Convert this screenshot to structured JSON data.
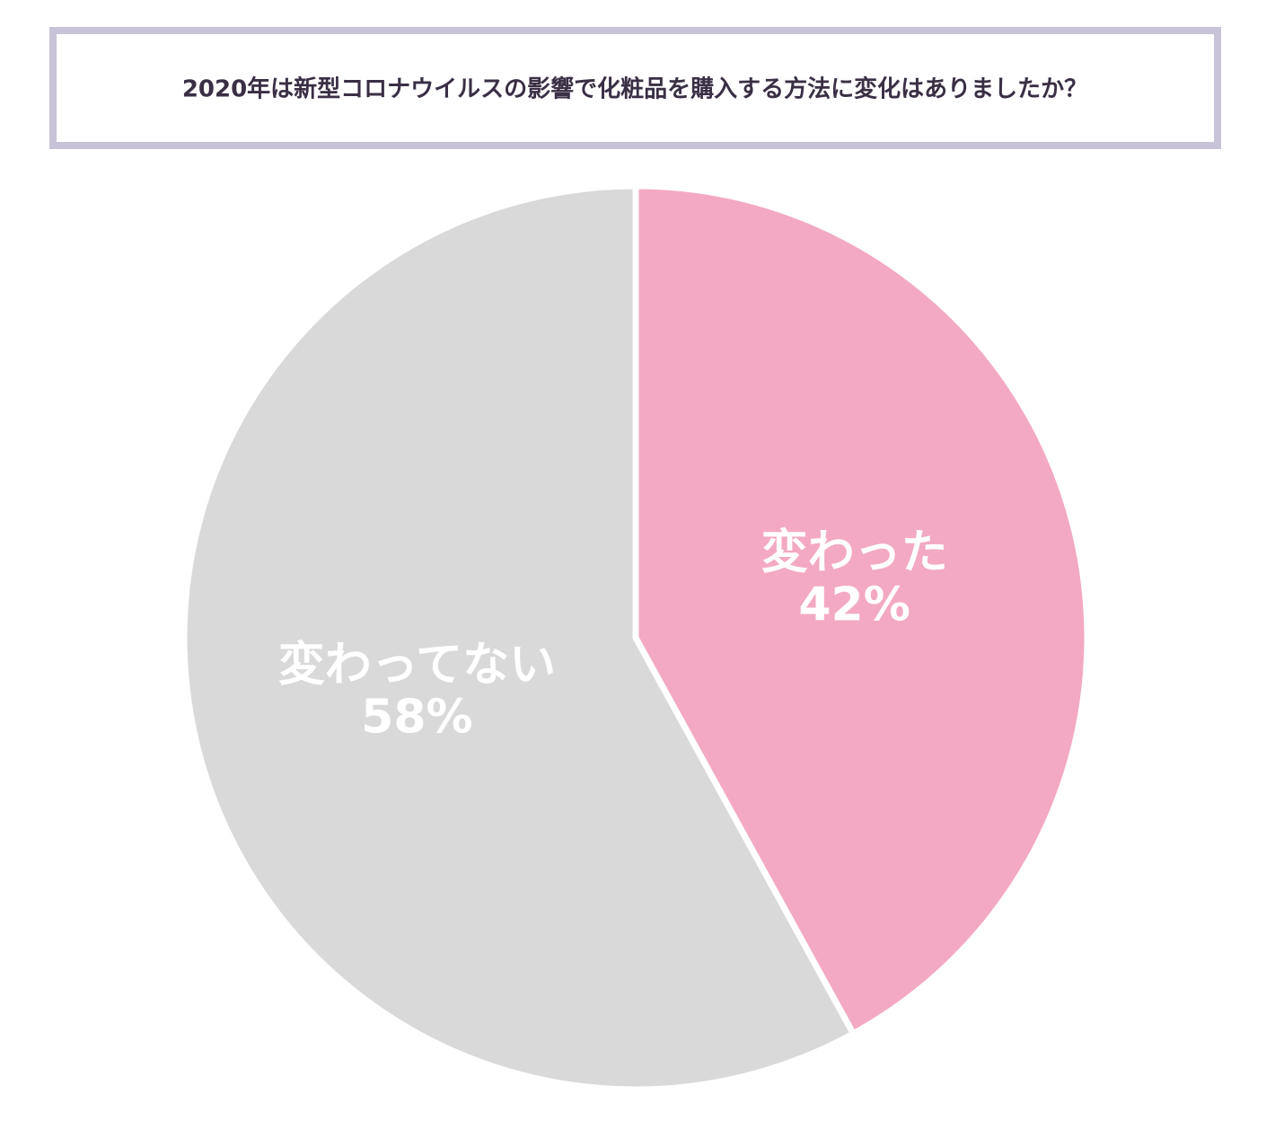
{
  "chart_data": {
    "type": "pie",
    "title": "2020年は新型コロナウイルスの影響で化粧品を購入する方法に変化はありましたか？",
    "categories": [
      "変わった",
      "変わってない"
    ],
    "values": [
      42,
      58
    ],
    "value_labels": [
      "42%",
      "58%"
    ],
    "colors": [
      "#f3a9c3",
      "#d9d9d9"
    ]
  }
}
